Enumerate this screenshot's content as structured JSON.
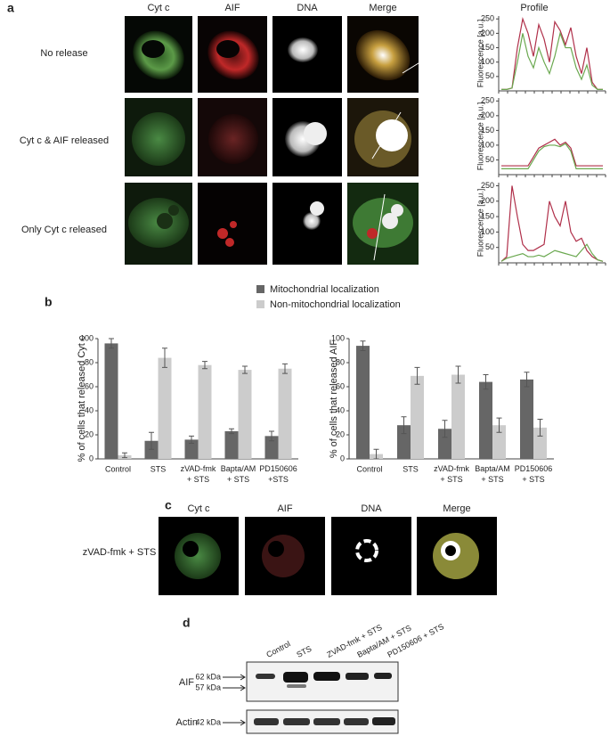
{
  "panels": {
    "a": "a",
    "b": "b",
    "c": "c",
    "d": "d"
  },
  "panel_a": {
    "columns": [
      "Cyt c",
      "AIF",
      "DNA",
      "Merge",
      "Profile"
    ],
    "rows": [
      "No release",
      "Cyt c & AIF released",
      "Only Cyt c released"
    ]
  },
  "legend": [
    "Mitochondrial localization",
    "Non-mitochondrial localization"
  ],
  "chart_data": [
    {
      "type": "line",
      "ylabel": "Fluorescence [a.u.]",
      "ylim": [
        0,
        260
      ],
      "yticks": [
        50,
        100,
        150,
        200,
        250
      ],
      "series": [
        {
          "color": "#b0304a",
          "values": [
            5,
            5,
            10,
            150,
            250,
            200,
            120,
            230,
            180,
            100,
            240,
            210,
            160,
            220,
            120,
            60,
            150,
            30,
            5,
            5
          ]
        },
        {
          "color": "#6aa84f",
          "values": [
            5,
            5,
            10,
            100,
            200,
            120,
            80,
            150,
            100,
            60,
            120,
            200,
            150,
            150,
            80,
            40,
            90,
            20,
            5,
            5
          ]
        }
      ]
    },
    {
      "type": "line",
      "ylabel": "Fluorescence [a.u.]",
      "ylim": [
        0,
        260
      ],
      "yticks": [
        50,
        100,
        150,
        200,
        250
      ],
      "series": [
        {
          "color": "#b0304a",
          "values": [
            30,
            30,
            30,
            30,
            30,
            30,
            60,
            90,
            100,
            110,
            120,
            100,
            110,
            90,
            30,
            30,
            30,
            30,
            30,
            30
          ]
        },
        {
          "color": "#6aa84f",
          "values": [
            20,
            20,
            20,
            20,
            20,
            20,
            50,
            80,
            95,
            100,
            100,
            95,
            105,
            80,
            20,
            20,
            20,
            20,
            20,
            20
          ]
        }
      ]
    },
    {
      "type": "line",
      "ylabel": "Fluorescence [a.u.]",
      "ylim": [
        0,
        260
      ],
      "yticks": [
        50,
        100,
        150,
        200,
        250
      ],
      "series": [
        {
          "color": "#b0304a",
          "values": [
            5,
            20,
            250,
            150,
            60,
            40,
            40,
            50,
            60,
            200,
            150,
            120,
            200,
            100,
            70,
            80,
            40,
            20,
            10,
            5
          ]
        },
        {
          "color": "#6aa84f",
          "values": [
            5,
            15,
            20,
            25,
            30,
            20,
            20,
            25,
            20,
            30,
            40,
            35,
            30,
            25,
            20,
            40,
            60,
            30,
            10,
            5
          ]
        }
      ]
    },
    {
      "type": "bar",
      "ylabel": "% of cells that released Cyt c",
      "categories": [
        "Control",
        "STS",
        "zVAD-fmk + STS",
        "Bapta/AM + STS",
        "PD150606 +STS"
      ],
      "ylim": [
        0,
        100
      ],
      "yticks": [
        0,
        20,
        40,
        60,
        80,
        100
      ],
      "series": [
        {
          "name": "Mitochondrial localization",
          "color": "#666666",
          "values": [
            96,
            15,
            16,
            23,
            19
          ],
          "errors": [
            4,
            7,
            3,
            2,
            4
          ]
        },
        {
          "name": "Non-mitochondrial localization",
          "color": "#cccccc",
          "values": [
            3,
            84,
            78,
            74,
            75
          ],
          "errors": [
            2,
            8,
            3,
            3,
            4
          ]
        }
      ]
    },
    {
      "type": "bar",
      "ylabel": "% of cells that released AIF",
      "categories": [
        "Control",
        "STS",
        "zVAD-fmk + STS",
        "Bapta/AM + STS",
        "PD150606 + STS"
      ],
      "ylim": [
        0,
        100
      ],
      "yticks": [
        0,
        20,
        40,
        60,
        80,
        100
      ],
      "series": [
        {
          "color": "#666666",
          "values": [
            94,
            28,
            25,
            64,
            66
          ],
          "errors": [
            4,
            7,
            7,
            6,
            6
          ]
        },
        {
          "color": "#cccccc",
          "values": [
            4,
            69,
            70,
            28,
            26
          ],
          "errors": [
            4,
            7,
            7,
            6,
            7
          ]
        }
      ]
    }
  ],
  "panel_c": {
    "columns": [
      "Cyt c",
      "AIF",
      "DNA",
      "Merge"
    ],
    "row": "zVAD-fmk + STS"
  },
  "panel_d": {
    "lanes": [
      "Control",
      "STS",
      "ZVAD-fmk + STS",
      "Bapta/AM + STS",
      "PD150606 + STS"
    ],
    "aif": "AIF",
    "aif_sizes": [
      "62 kDa",
      "57 kDa"
    ],
    "actin": "Actin",
    "actin_size": "42 kDa"
  }
}
